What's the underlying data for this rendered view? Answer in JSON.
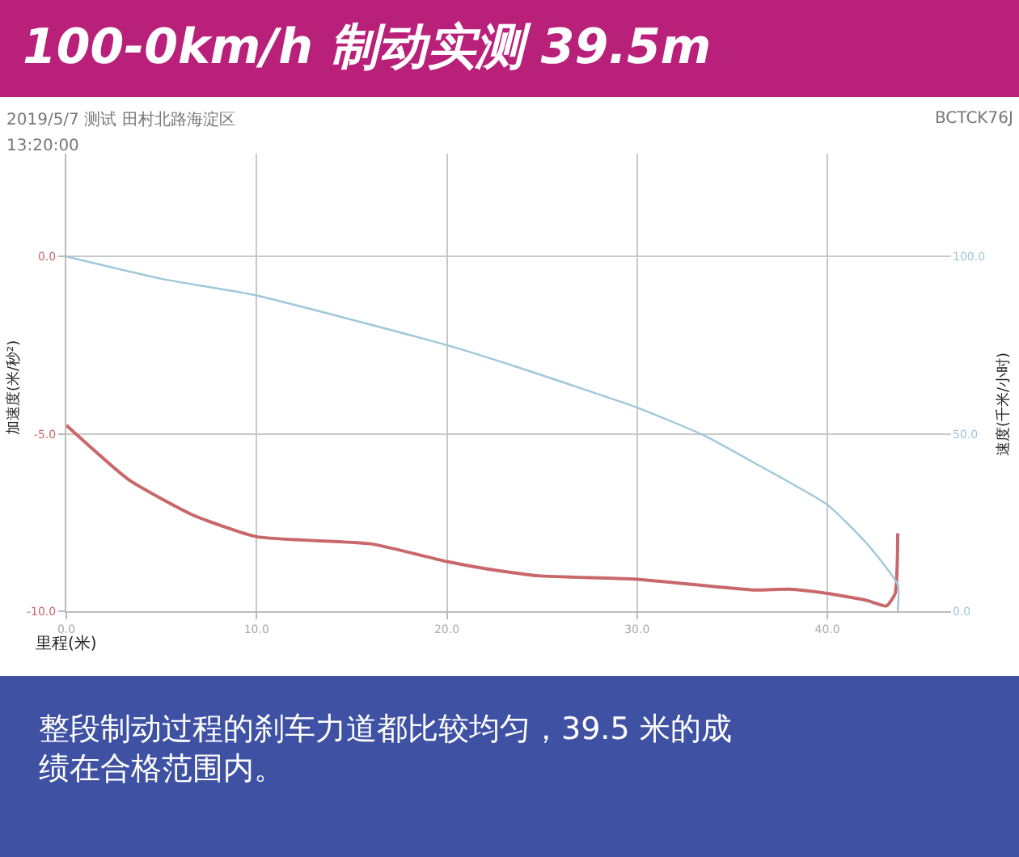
{
  "chart_data": {
    "type": "line",
    "title": "100-0km/h 制动实测 39.5m",
    "subtitle": "2019/5/7 测试 田村北路海淀区",
    "xlabel": "里程(米)",
    "ylabel": "加速度(米/秒²)",
    "y2label": "速度(千米/小时)",
    "annotations": [
      "BCTCK76J",
      "13:20:00",
      "整段制动过程的刹车力道都比较均匀，39.5 米的成绩在合格范围内。"
    ],
    "series": [
      {
        "color": "#c8686a",
        "x": [
          0,
          3.3,
          6.7,
          10,
          16,
          20,
          22,
          24.8,
          30,
          36.1,
          38,
          40,
          42.1,
          43.1,
          43.56,
          43.7
        ],
        "values": [
          -4.76,
          -6.3,
          -7.3,
          -7.9,
          -8.1,
          -8.6,
          -8.8,
          -9.0,
          -9.1,
          -9.4,
          -9.38,
          -9.5,
          -9.7,
          -9.85,
          -9.5,
          -7.8
        ]
      },
      {
        "color": "#9fc8d8",
        "axis": "y2",
        "x": [
          0,
          5,
          10,
          20,
          23.6,
          30,
          33.5,
          36.1,
          40,
          42.1,
          43.7,
          43.7
        ],
        "values": [
          100,
          93.7,
          89,
          75,
          69,
          57.4,
          49.6,
          42,
          30,
          18.9,
          7.5,
          0
        ]
      }
    ],
    "xlim": [
      0,
      46.5
    ],
    "xticks": [
      {
        "value": 0,
        "label": "0.0"
      },
      {
        "value": 10,
        "label": "10.0"
      },
      {
        "value": 20,
        "label": "20.0"
      },
      {
        "value": 30,
        "label": "30.0"
      },
      {
        "value": 40,
        "label": "40.0"
      }
    ],
    "ylim": [
      -10,
      2.9
    ],
    "yticks": [
      {
        "value": -10,
        "label": "-10.0"
      },
      {
        "value": -5,
        "label": "-5.0"
      },
      {
        "value": 0,
        "label": "0.0"
      }
    ],
    "y2lim": [
      0,
      129
    ],
    "y2ticks": [
      {
        "value": 0,
        "label": "0.0"
      },
      {
        "value": 50,
        "label": "50.0"
      },
      {
        "value": 100,
        "label": "100.0"
      }
    ],
    "grid": true,
    "marker": "none",
    "line_style": "solid"
  }
}
